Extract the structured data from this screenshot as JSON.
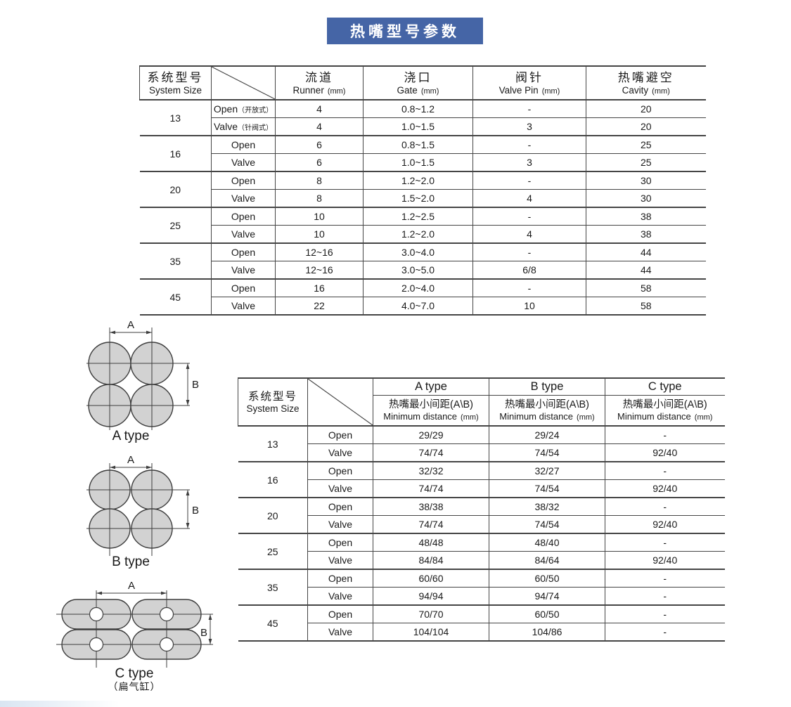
{
  "colors": {
    "banner_bg": "#4565a6",
    "banner_text": "#ffffff",
    "line": "#454545",
    "shape_fill": "#d2d2d2"
  },
  "banner": {
    "title": "热嘴型号参数"
  },
  "table1": {
    "header": {
      "col1_zh": "系统型号",
      "col1_en": "System Size",
      "cols": [
        {
          "zh": "流道",
          "en": "Runner",
          "unit": "(mm)"
        },
        {
          "zh": "浇口",
          "en": "Gate",
          "unit": "(mm)"
        },
        {
          "zh": "阀针",
          "en": "Valve Pin",
          "unit": "(mm)"
        },
        {
          "zh": "热嘴避空",
          "en": "Cavity",
          "unit": "(mm)"
        }
      ]
    },
    "groups": [
      {
        "size": "13",
        "rows": [
          {
            "mode": "Open",
            "mode_note": "（开放式）",
            "runner": "4",
            "gate": "0.8~1.2",
            "valve_pin": "-",
            "cavity": "20"
          },
          {
            "mode": "Valve",
            "mode_note": "（针阀式）",
            "runner": "4",
            "gate": "1.0~1.5",
            "valve_pin": "3",
            "cavity": "20"
          }
        ]
      },
      {
        "size": "16",
        "rows": [
          {
            "mode": "Open",
            "runner": "6",
            "gate": "0.8~1.5",
            "valve_pin": "-",
            "cavity": "25"
          },
          {
            "mode": "Valve",
            "runner": "6",
            "gate": "1.0~1.5",
            "valve_pin": "3",
            "cavity": "25"
          }
        ]
      },
      {
        "size": "20",
        "rows": [
          {
            "mode": "Open",
            "runner": "8",
            "gate": "1.2~2.0",
            "valve_pin": "-",
            "cavity": "30"
          },
          {
            "mode": "Valve",
            "runner": "8",
            "gate": "1.5~2.0",
            "valve_pin": "4",
            "cavity": "30"
          }
        ]
      },
      {
        "size": "25",
        "rows": [
          {
            "mode": "Open",
            "runner": "10",
            "gate": "1.2~2.5",
            "valve_pin": "-",
            "cavity": "38"
          },
          {
            "mode": "Valve",
            "runner": "10",
            "gate": "1.2~2.0",
            "valve_pin": "4",
            "cavity": "38"
          }
        ]
      },
      {
        "size": "35",
        "rows": [
          {
            "mode": "Open",
            "runner": "12~16",
            "gate": "3.0~4.0",
            "valve_pin": "-",
            "cavity": "44"
          },
          {
            "mode": "Valve",
            "runner": "12~16",
            "gate": "3.0~5.0",
            "valve_pin": "6/8",
            "cavity": "44"
          }
        ]
      },
      {
        "size": "45",
        "rows": [
          {
            "mode": "Open",
            "runner": "16",
            "gate": "2.0~4.0",
            "valve_pin": "-",
            "cavity": "58"
          },
          {
            "mode": "Valve",
            "runner": "22",
            "gate": "4.0~7.0",
            "valve_pin": "10",
            "cavity": "58"
          }
        ]
      }
    ]
  },
  "diagrams": [
    {
      "label": "A type",
      "dim_a": "A",
      "dim_b": "B"
    },
    {
      "label": "B type",
      "dim_a": "A",
      "dim_b": "B"
    },
    {
      "label": "C type",
      "sublabel": "（扁气缸）",
      "dim_a": "A",
      "dim_b": "B"
    }
  ],
  "table2": {
    "header": {
      "col1_zh": "系统型号",
      "col1_en": "System Size",
      "types": [
        "A type",
        "B type",
        "C type"
      ],
      "sub_zh": "热嘴最小间距(A\\B)",
      "sub_en": "Minimum distance",
      "sub_unit": "(mm)"
    },
    "groups": [
      {
        "size": "13",
        "rows": [
          {
            "mode": "Open",
            "a": "29/29",
            "b": "29/24",
            "c": "-"
          },
          {
            "mode": "Valve",
            "a": "74/74",
            "b": "74/54",
            "c": "92/40"
          }
        ]
      },
      {
        "size": "16",
        "rows": [
          {
            "mode": "Open",
            "a": "32/32",
            "b": "32/27",
            "c": "-"
          },
          {
            "mode": "Valve",
            "a": "74/74",
            "b": "74/54",
            "c": "92/40"
          }
        ]
      },
      {
        "size": "20",
        "rows": [
          {
            "mode": "Open",
            "a": "38/38",
            "b": "38/32",
            "c": "-"
          },
          {
            "mode": "Valve",
            "a": "74/74",
            "b": "74/54",
            "c": "92/40"
          }
        ]
      },
      {
        "size": "25",
        "rows": [
          {
            "mode": "Open",
            "a": "48/48",
            "b": "48/40",
            "c": "-"
          },
          {
            "mode": "Valve",
            "a": "84/84",
            "b": "84/64",
            "c": "92/40"
          }
        ]
      },
      {
        "size": "35",
        "rows": [
          {
            "mode": "Open",
            "a": "60/60",
            "b": "60/50",
            "c": "-"
          },
          {
            "mode": "Valve",
            "a": "94/94",
            "b": "94/74",
            "c": "-"
          }
        ]
      },
      {
        "size": "45",
        "rows": [
          {
            "mode": "Open",
            "a": "70/70",
            "b": "60/50",
            "c": "-"
          },
          {
            "mode": "Valve",
            "a": "104/104",
            "b": "104/86",
            "c": "-"
          }
        ]
      }
    ]
  }
}
